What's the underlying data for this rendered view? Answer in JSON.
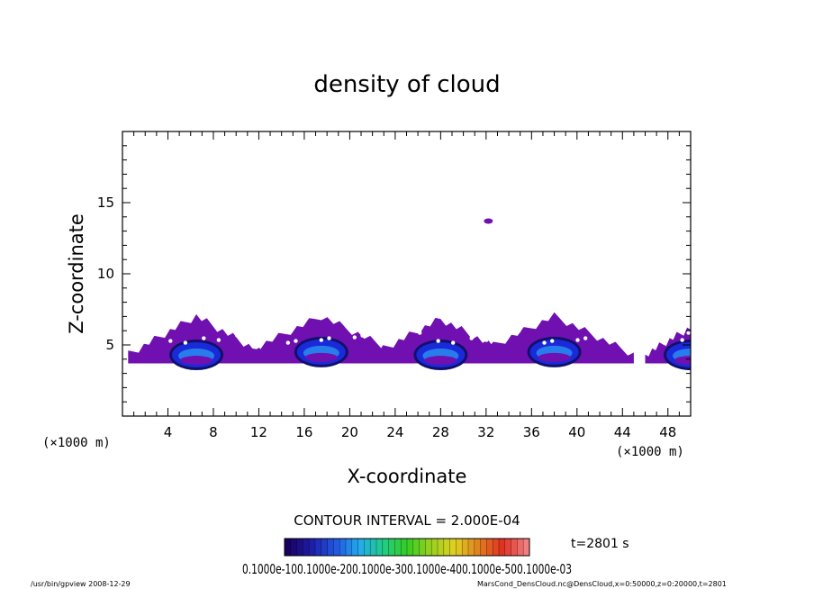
{
  "chart_data": {
    "type": "heatmap",
    "title": "density of cloud",
    "xlabel": "X-coordinate",
    "ylabel": "Z-coordinate",
    "x_unit": "(×1000 m)",
    "y_unit": "(×1000 m)",
    "xlim": [
      0,
      50
    ],
    "ylim": [
      0,
      20
    ],
    "x_ticks": [
      4,
      8,
      12,
      16,
      20,
      24,
      28,
      32,
      36,
      40,
      44,
      48
    ],
    "y_ticks": [
      5,
      10,
      15
    ],
    "contour_interval_label": "CONTOUR INTERVAL = 2.000E-04",
    "time_label": "t=2801 s",
    "colorbar_labels_text": "0.1000e-100.1000e-200.1000e-300.1000e-400.1000e-500.1000e-03",
    "colorbar_colors": [
      "#1a0060",
      "#1e1ea8",
      "#2255e0",
      "#22aaee",
      "#22cc88",
      "#33cc22",
      "#99d020",
      "#e0d020",
      "#e08020",
      "#e03020",
      "#f08080"
    ],
    "clouds": [
      {
        "x_center": 6.5,
        "z_center": 4.3,
        "x_halfwidth": 6,
        "top": 7.3,
        "core_value": "high"
      },
      {
        "x_center": 17.5,
        "z_center": 4.5,
        "x_halfwidth": 7,
        "top": 7.3,
        "core_value": "high"
      },
      {
        "x_center": 28,
        "z_center": 4.3,
        "x_halfwidth": 6,
        "top": 7.1,
        "core_value": "high"
      },
      {
        "x_center": 38,
        "z_center": 4.5,
        "x_halfwidth": 7,
        "top": 7.3,
        "core_value": "high"
      },
      {
        "x_center": 50,
        "z_center": 4.3,
        "x_halfwidth": 4,
        "top": 6.5,
        "core_value": "high"
      }
    ],
    "isolated_points": [
      {
        "x": 32.2,
        "z": 13.7
      }
    ]
  },
  "footer": {
    "left": "/usr/bin/gpview   2008-12-29",
    "right": "MarsCond_DensCloud.nc@DensCloud,x=0:50000,z=0:20000,t=2801"
  },
  "colors": {
    "outer": "#7010b0",
    "core": "#1a2ad8",
    "inner": "#2a8cf0",
    "deep": "#10106a"
  }
}
